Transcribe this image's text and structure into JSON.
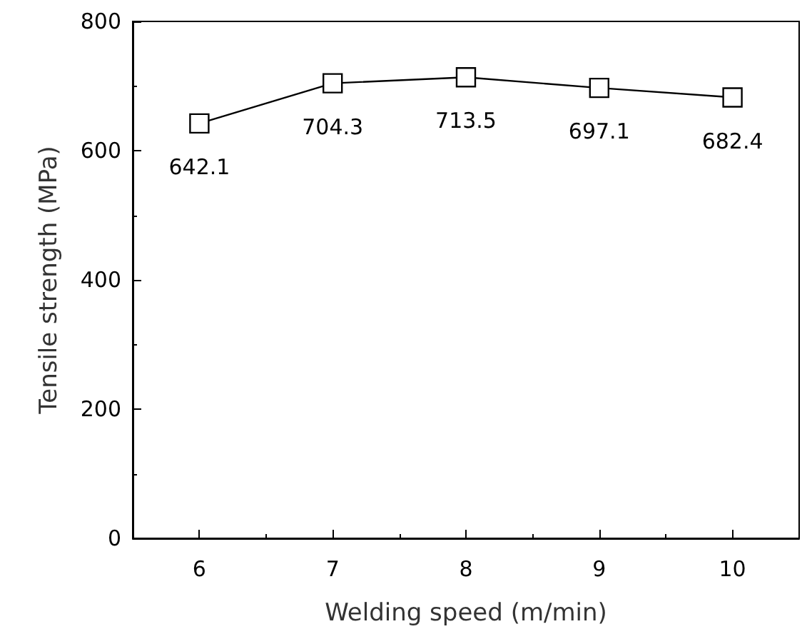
{
  "chart_data": {
    "type": "line",
    "xlabel": "Welding speed (m/min)",
    "ylabel": "Tensile strength (MPa)",
    "x": [
      6,
      7,
      8,
      9,
      10
    ],
    "series": [
      {
        "color": "#000000",
        "values": [
          642.1,
          704.3,
          713.5,
          697.1,
          682.4
        ]
      }
    ],
    "data_labels": true,
    "marker": "square",
    "line_style": "solid",
    "grid": false,
    "xlim": [
      5.5,
      10.5
    ],
    "xticks": [
      6,
      7,
      8,
      9,
      10
    ],
    "ylim": [
      0,
      800
    ],
    "yticks": [
      0,
      200,
      400,
      600,
      800
    ]
  }
}
